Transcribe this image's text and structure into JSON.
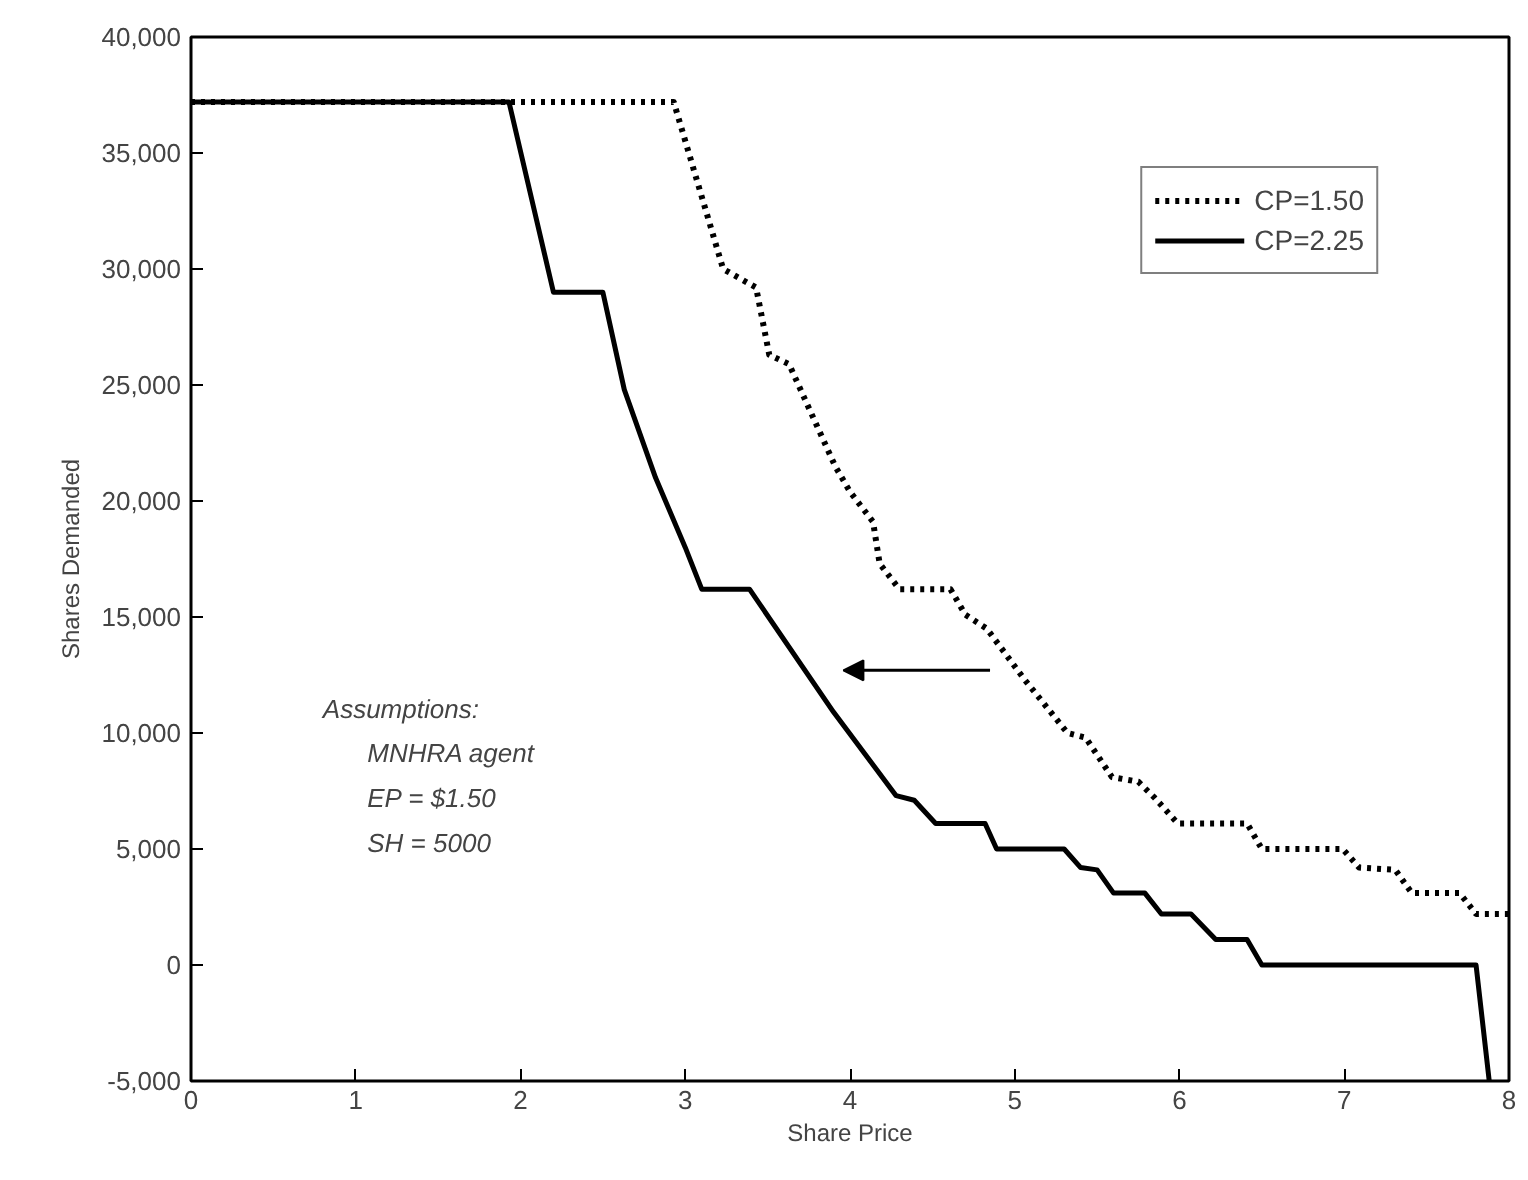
{
  "chart_data": {
    "type": "line",
    "xlabel": "Share Price",
    "ylabel": "Shares Demanded",
    "xlim": [
      0,
      8
    ],
    "xticks": [
      0,
      1,
      2,
      3,
      4,
      5,
      6,
      7,
      8
    ],
    "ylim": [
      -5000,
      40000
    ],
    "yticks": [
      {
        "value": -5000,
        "label": "-5,000"
      },
      {
        "value": 0,
        "label": "0"
      },
      {
        "value": 5000,
        "label": "5,000"
      },
      {
        "value": 10000,
        "label": "10,000"
      },
      {
        "value": 15000,
        "label": "15,000"
      },
      {
        "value": 20000,
        "label": "20,000"
      },
      {
        "value": 25000,
        "label": "25,000"
      },
      {
        "value": 30000,
        "label": "30,000"
      },
      {
        "value": 35000,
        "label": "35,000"
      },
      {
        "value": 40000,
        "label": "40,000"
      }
    ],
    "grid": false,
    "legend": "top right",
    "marker": "none",
    "series": [
      {
        "name": "CP=1.50",
        "color": "#000000",
        "line_style": "dotted",
        "x": [
          0,
          2.93,
          3.23,
          3.43,
          3.51,
          3.63,
          3.91,
          4.0,
          4.14,
          4.18,
          4.3,
          4.61,
          4.7,
          4.83,
          5.06,
          5.32,
          5.43,
          5.59,
          5.75,
          5.85,
          5.99,
          6.41,
          6.5,
          6.99,
          7.09,
          7.31,
          7.41,
          7.7,
          7.8,
          8.0
        ],
        "values": [
          37200,
          37200,
          30000,
          29200,
          26300,
          25900,
          21500,
          20400,
          19100,
          17300,
          16200,
          16200,
          15100,
          14500,
          12300,
          10000,
          9800,
          8100,
          7900,
          7200,
          6100,
          6100,
          5000,
          5000,
          4200,
          4100,
          3100,
          3100,
          2200,
          2200
        ]
      },
      {
        "name": "CP=2.25",
        "color": "#000000",
        "line_style": "solid",
        "x": [
          0,
          1.93,
          2.2,
          2.5,
          2.63,
          2.82,
          3.0,
          3.1,
          3.39,
          3.9,
          4.28,
          4.39,
          4.52,
          4.82,
          4.89,
          5.3,
          5.4,
          5.5,
          5.6,
          5.79,
          5.89,
          6.07,
          6.22,
          6.41,
          6.5,
          7.8,
          7.88
        ],
        "values": [
          37200,
          37200,
          29000,
          29000,
          24800,
          21000,
          18000,
          16200,
          16200,
          10900,
          7300,
          7100,
          6100,
          6100,
          5000,
          5000,
          4200,
          4100,
          3100,
          3100,
          2200,
          2200,
          1100,
          1100,
          0,
          0,
          -5000
        ]
      }
    ],
    "annotations": [
      "Assumptions:",
      "MNHRA agent",
      "EP = $1.50",
      "SH = 5000"
    ]
  }
}
